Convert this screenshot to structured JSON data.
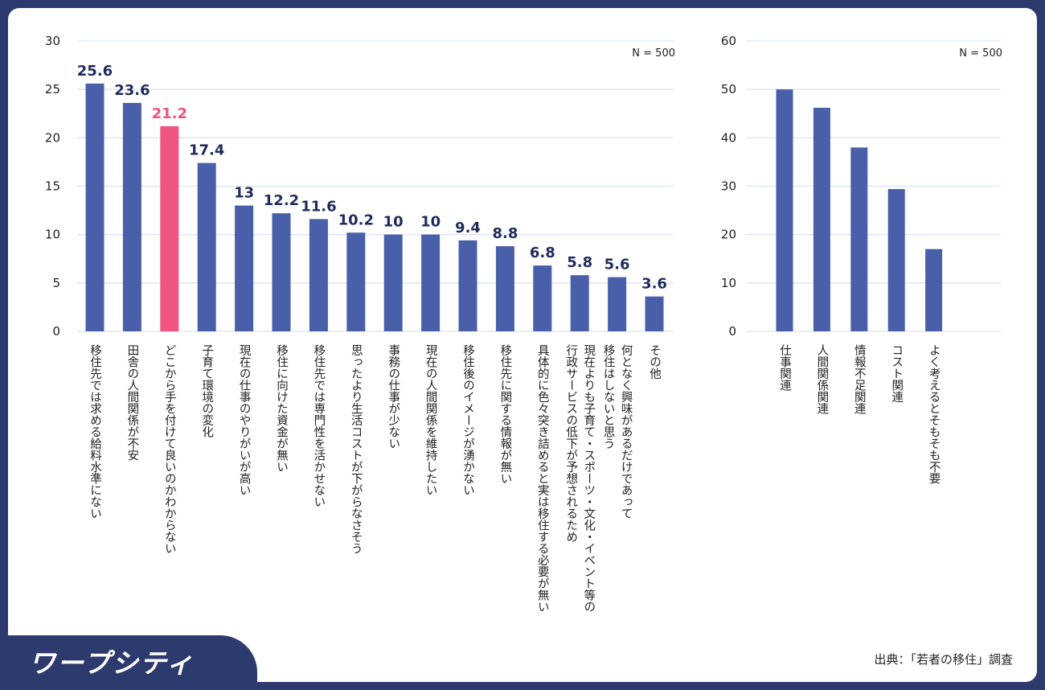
{
  "brand": {
    "logo_text": "ワープシティ"
  },
  "source": "出典：「若者の移住」調査",
  "colors": {
    "bar": "#4a5fa9",
    "highlight": "#f05480",
    "value_text": "#1f2b5c",
    "grid": "#dce4f3",
    "frame": "#2d3a6e"
  },
  "chart_data": [
    {
      "type": "bar",
      "n_label": "N = 500",
      "ylim": [
        0,
        30
      ],
      "yticks": [
        0,
        5,
        10,
        15,
        20,
        25,
        30
      ],
      "show_values": true,
      "highlight_index": 2,
      "categories": [
        "移住先では求める給料水準にない",
        "田舎の人間関係が不安",
        "どこから手を付けて良いのかわからない",
        "子育て環境の変化",
        "現在の仕事のやりがいが高い",
        "移住に向けた資金が無い",
        "移住先では専門性を活かせない",
        "思ったより生活コストが下がらなさそう",
        "事務の仕事が少ない",
        "現在の人間関係を維持したい",
        "移住後のイメージが湧かない",
        "移住先に関する情報が無い",
        "具体的に色々突き詰めると実は移住する必要が無い",
        "現在よりも子育て・スポーツ・文化・イベント等の\n行政サービスの低下が予想されるため",
        "何となく興味があるだけであって\n移住はしないと思う",
        "その他"
      ],
      "values": [
        25.6,
        23.6,
        21.2,
        17.4,
        13,
        12.2,
        11.6,
        10.2,
        10,
        10,
        9.4,
        8.8,
        6.8,
        5.8,
        5.6,
        3.6
      ],
      "value_labels": [
        "25.6",
        "23.6",
        "21.2",
        "17.4",
        "13",
        "12.2",
        "11.6",
        "10.2",
        "10",
        "10",
        "9.4",
        "8.8",
        "6.8",
        "5.8",
        "5.6",
        "3.6"
      ]
    },
    {
      "type": "bar",
      "n_label": "N = 500",
      "ylim": [
        0,
        60
      ],
      "yticks": [
        0,
        10,
        20,
        30,
        40,
        50,
        60
      ],
      "show_values": false,
      "categories": [
        "仕事関連",
        "人間関係関連",
        "情報不足関連",
        "コスト関連",
        "よく考えるとそもそも不要"
      ],
      "values": [
        50,
        46.2,
        38,
        29.4,
        17
      ]
    }
  ]
}
